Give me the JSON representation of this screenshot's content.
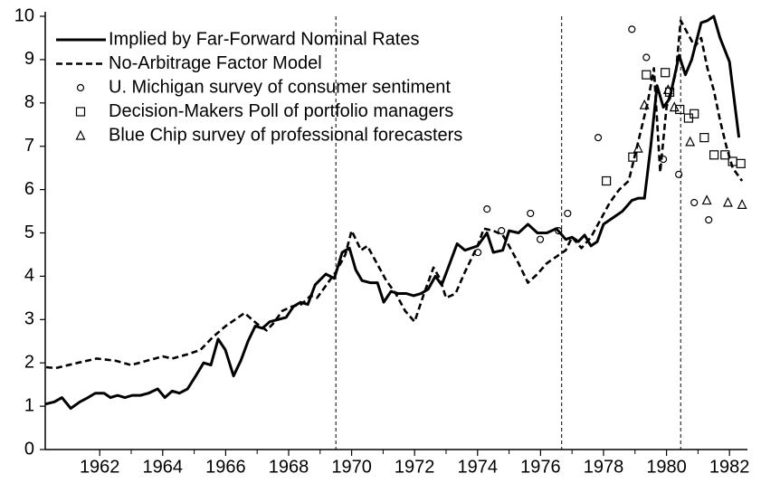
{
  "chart_data": {
    "type": "line",
    "xlim": [
      1960.27,
      1982.57
    ],
    "ylim": [
      0,
      10
    ],
    "xticks": [
      1962,
      1964,
      1966,
      1968,
      1970,
      1972,
      1974,
      1976,
      1978,
      1980,
      1982
    ],
    "yticks": [
      0,
      1,
      2,
      3,
      4,
      5,
      6,
      7,
      8,
      9,
      10
    ],
    "reference_lines": [
      1969.5,
      1976.67,
      1980.45
    ],
    "legend": "upper left",
    "series": [
      {
        "name": "Implied by Far-Forward Nominal Rates",
        "type": "line",
        "style": "solid",
        "color": "#000000",
        "x": [
          1960.28,
          1960.56,
          1960.8,
          1961.08,
          1961.37,
          1961.63,
          1961.86,
          1962.14,
          1962.34,
          1962.57,
          1962.8,
          1963.03,
          1963.29,
          1963.55,
          1963.84,
          1964.07,
          1964.3,
          1964.53,
          1964.79,
          1965.05,
          1965.3,
          1965.53,
          1965.76,
          1965.99,
          1966.25,
          1966.48,
          1966.71,
          1966.94,
          1967.17,
          1967.4,
          1967.66,
          1967.92,
          1968.15,
          1968.38,
          1968.61,
          1968.84,
          1969.18,
          1969.45,
          1969.7,
          1969.93,
          1970.13,
          1970.33,
          1970.59,
          1970.82,
          1971.02,
          1971.25,
          1971.48,
          1971.74,
          1971.97,
          1972.2,
          1972.43,
          1972.66,
          1972.86,
          1973.12,
          1973.35,
          1973.6,
          1974.0,
          1974.3,
          1974.5,
          1974.8,
          1975.0,
          1975.3,
          1975.6,
          1975.9,
          1976.2,
          1976.5,
          1976.8,
          1977.0,
          1977.2,
          1977.4,
          1977.6,
          1977.8,
          1978.0,
          1978.3,
          1978.6,
          1978.9,
          1979.1,
          1979.3,
          1979.5,
          1979.7,
          1979.9,
          1980.1,
          1980.4,
          1980.6,
          1980.8,
          1981.1,
          1981.3,
          1981.5,
          1981.7,
          1982.0,
          1982.3
        ],
        "values": [
          1.05,
          1.1,
          1.2,
          0.95,
          1.1,
          1.2,
          1.3,
          1.3,
          1.2,
          1.25,
          1.2,
          1.25,
          1.25,
          1.3,
          1.4,
          1.2,
          1.35,
          1.3,
          1.4,
          1.7,
          2.0,
          1.95,
          2.55,
          2.3,
          1.7,
          2.05,
          2.5,
          2.85,
          2.8,
          2.95,
          3.0,
          3.05,
          3.3,
          3.4,
          3.35,
          3.8,
          4.05,
          3.95,
          4.55,
          4.65,
          4.15,
          3.9,
          3.85,
          3.85,
          3.4,
          3.65,
          3.6,
          3.6,
          3.55,
          3.6,
          3.7,
          4.0,
          3.8,
          4.3,
          4.75,
          4.6,
          4.7,
          5.0,
          4.55,
          4.6,
          5.05,
          5.0,
          5.2,
          5.0,
          5.0,
          5.1,
          4.85,
          4.9,
          4.8,
          4.95,
          4.7,
          4.8,
          5.2,
          5.35,
          5.5,
          5.75,
          5.8,
          5.8,
          7.0,
          8.4,
          7.9,
          8.1,
          9.1,
          8.65,
          9.0,
          9.85,
          9.9,
          10.0,
          9.5,
          8.95,
          7.2
        ]
      },
      {
        "name": "No-Arbitrage Factor Model",
        "type": "line",
        "style": "dashed",
        "color": "#000000",
        "x": [
          1960.3,
          1960.6,
          1961.3,
          1961.9,
          1962.5,
          1963.0,
          1963.5,
          1964.0,
          1964.3,
          1964.8,
          1965.2,
          1965.6,
          1966.0,
          1966.3,
          1966.6,
          1967.0,
          1967.3,
          1967.5,
          1967.8,
          1968.1,
          1968.4,
          1968.7,
          1968.9,
          1969.2,
          1969.5,
          1969.8,
          1970.0,
          1970.3,
          1970.5,
          1970.8,
          1971.1,
          1971.4,
          1971.7,
          1972.0,
          1972.3,
          1972.6,
          1972.8,
          1973.0,
          1973.3,
          1973.6,
          1974.0,
          1974.2,
          1974.5,
          1974.8,
          1975.0,
          1975.3,
          1975.6,
          1975.9,
          1976.2,
          1976.5,
          1976.8,
          1977.0,
          1977.3,
          1977.6,
          1977.9,
          1978.2,
          1978.5,
          1978.8,
          1979.1,
          1979.4,
          1979.6,
          1979.8,
          1980.0,
          1980.3,
          1980.45,
          1980.9,
          1981.1,
          1981.3,
          1981.5,
          1981.7,
          1981.9,
          1982.1,
          1982.4
        ],
        "values": [
          1.9,
          1.88,
          2.0,
          2.1,
          2.05,
          1.95,
          2.05,
          2.15,
          2.1,
          2.2,
          2.3,
          2.6,
          2.85,
          3.0,
          3.15,
          2.9,
          2.75,
          2.9,
          3.2,
          3.3,
          3.35,
          3.55,
          3.5,
          3.8,
          4.1,
          4.5,
          5.05,
          4.6,
          4.7,
          4.3,
          3.9,
          3.6,
          3.2,
          2.95,
          3.6,
          4.2,
          3.95,
          3.5,
          3.6,
          4.1,
          4.7,
          5.1,
          5.05,
          4.95,
          4.7,
          4.3,
          3.85,
          4.05,
          4.3,
          4.45,
          4.6,
          4.9,
          4.65,
          4.9,
          5.3,
          5.7,
          6.0,
          6.2,
          7.1,
          8.0,
          8.8,
          6.4,
          7.9,
          8.7,
          9.9,
          9.3,
          9.5,
          8.8,
          8.3,
          7.6,
          7.0,
          6.5,
          6.2
        ]
      },
      {
        "name": "U. Michigan survey of consumer sentiment",
        "type": "scatter",
        "marker": "circle",
        "color": "#000000",
        "x": [
          1974.01,
          1974.3,
          1974.76,
          1975.68,
          1975.99,
          1976.57,
          1976.86,
          1977.83,
          1978.9,
          1979.36,
          1979.9,
          1980.39,
          1980.88,
          1981.34
        ],
        "values": [
          4.55,
          5.55,
          5.05,
          5.45,
          4.85,
          5.05,
          5.45,
          7.2,
          9.7,
          9.05,
          6.7,
          6.35,
          5.7,
          5.3
        ]
      },
      {
        "name": "Decision-Makers Poll of portfolio managers",
        "type": "scatter",
        "marker": "square",
        "color": "#000000",
        "x": [
          1978.09,
          1978.93,
          1979.36,
          1979.96,
          1980.1,
          1980.42,
          1980.7,
          1980.88,
          1981.2,
          1981.51,
          1981.86,
          1982.1,
          1982.36
        ],
        "values": [
          6.2,
          6.75,
          8.65,
          8.7,
          8.25,
          7.85,
          7.65,
          7.75,
          7.2,
          6.8,
          6.8,
          6.65,
          6.6
        ]
      },
      {
        "name": "Blue Chip survey of professional forecasters",
        "type": "scatter",
        "marker": "triangle",
        "color": "#000000",
        "x": [
          1979.1,
          1979.3,
          1980.05,
          1980.25,
          1980.75,
          1981.28,
          1981.95,
          1982.4
        ],
        "values": [
          6.95,
          7.95,
          8.3,
          7.9,
          7.1,
          5.75,
          5.7,
          5.65
        ]
      }
    ]
  }
}
